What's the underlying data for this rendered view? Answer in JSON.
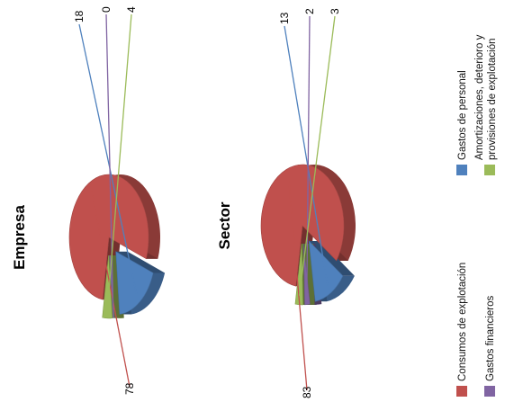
{
  "chart_data": [
    {
      "type": "pie",
      "title": "Empresa",
      "categories": [
        "Consumos de explotación",
        "Gastos de personal",
        "Gastos financieros",
        "Amortizaciones, deterioro y provisiones de explotación"
      ],
      "values": [
        78,
        18,
        0,
        4
      ],
      "colors": [
        "#c0504d",
        "#4f81bd",
        "#8064a2",
        "#9bbb59"
      ]
    },
    {
      "type": "pie",
      "title": "Sector",
      "categories": [
        "Consumos de explotación",
        "Gastos de personal",
        "Gastos financieros",
        "Amortizaciones, deterioro y provisiones de explotación"
      ],
      "values": [
        83,
        13,
        2,
        3
      ],
      "colors": [
        "#c0504d",
        "#4f81bd",
        "#8064a2",
        "#9bbb59"
      ]
    }
  ],
  "legend": {
    "items": [
      {
        "label": "Consumos de explotación",
        "color": "#c0504d"
      },
      {
        "label": "Gastos financieros",
        "color": "#8064a2"
      },
      {
        "label": "Gastos de personal",
        "color": "#4f81bd"
      },
      {
        "label_line1": "Amortizaciones, deterioro y",
        "label_line2": "provisiones de explotación",
        "color": "#9bbb59"
      }
    ]
  }
}
